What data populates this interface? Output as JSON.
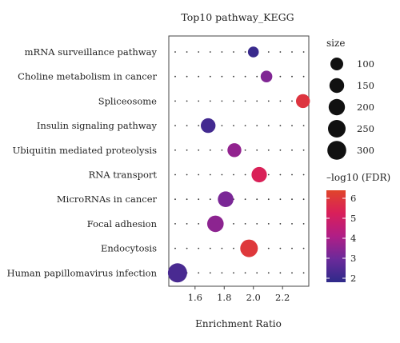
{
  "chart_data": {
    "type": "scatter",
    "title": "Top10 pathway_KEGG",
    "xlabel": "Enrichment Ratio",
    "ylabel": "",
    "xlim": [
      1.42,
      2.38
    ],
    "xticks": [
      1.6,
      1.8,
      2.0,
      2.2
    ],
    "xtick_labels": [
      "1.6",
      "1.8",
      "2.0",
      "2.2"
    ],
    "grid": "dotted",
    "categories": [
      "mRNA surveillance pathway",
      "Choline metabolism in cancer",
      "Spliceosome",
      "Insulin signaling pathway",
      "Ubiquitin mediated proteolysis",
      "RNA transport",
      "MicroRNAs in cancer",
      "Focal adhesion",
      "Endocytosis",
      "Human papillomavirus infection"
    ],
    "points": [
      {
        "pathway": "mRNA surveillance pathway",
        "enrichment_ratio": 2.0,
        "size": 60,
        "neg_log10_fdr": 2.0
      },
      {
        "pathway": "Choline metabolism in cancer",
        "enrichment_ratio": 2.09,
        "size": 75,
        "neg_log10_fdr": 3.3
      },
      {
        "pathway": "Spliceosome",
        "enrichment_ratio": 2.34,
        "size": 130,
        "neg_log10_fdr": 5.9
      },
      {
        "pathway": "Insulin signaling pathway",
        "enrichment_ratio": 1.69,
        "size": 150,
        "neg_log10_fdr": 2.2
      },
      {
        "pathway": "Ubiquitin mediated proteolysis",
        "enrichment_ratio": 1.87,
        "size": 130,
        "neg_log10_fdr": 3.6
      },
      {
        "pathway": "RNA transport",
        "enrichment_ratio": 2.04,
        "size": 170,
        "neg_log10_fdr": 5.3
      },
      {
        "pathway": "MicroRNAs in cancer",
        "enrichment_ratio": 1.81,
        "size": 180,
        "neg_log10_fdr": 3.2
      },
      {
        "pathway": "Focal adhesion",
        "enrichment_ratio": 1.74,
        "size": 210,
        "neg_log10_fdr": 3.5
      },
      {
        "pathway": "Endocytosis",
        "enrichment_ratio": 1.97,
        "size": 250,
        "neg_log10_fdr": 6.0
      },
      {
        "pathway": "Human papillomavirus infection",
        "enrichment_ratio": 1.48,
        "size": 310,
        "neg_log10_fdr": 2.3
      }
    ],
    "size_legend": {
      "title": "size",
      "values": [
        100,
        150,
        200,
        250,
        300
      ]
    },
    "color_legend": {
      "title": "–log10 (FDR)",
      "ticks": [
        2,
        3,
        4,
        5,
        6
      ],
      "range": [
        1.8,
        6.4
      ],
      "colors": [
        "#2e2a8a",
        "#6b2a9a",
        "#b01e86",
        "#d91f5a",
        "#e0452a"
      ],
      "placement": "right"
    }
  }
}
